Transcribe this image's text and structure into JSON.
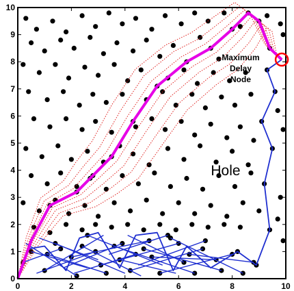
{
  "chart_data": {
    "type": "scatter",
    "title": "",
    "xlabel": "",
    "ylabel": "",
    "xlim": [
      0,
      10
    ],
    "ylim": [
      0,
      10
    ],
    "x_ticks": [
      "0",
      "2",
      "4",
      "6",
      "8",
      "10"
    ],
    "y_ticks": [
      "0",
      "1",
      "2",
      "3",
      "4",
      "5",
      "6",
      "7",
      "8",
      "9",
      "10"
    ],
    "grid": false,
    "colors": {
      "nodes": "#000000",
      "upper_path": "#e600e6",
      "lower_path": "#1f2fd0",
      "dotted_routes": "#e0201e",
      "marker": "#ff0000"
    },
    "annotations": {
      "max_delay_line1": "Maximum",
      "max_delay_line2": "Delay",
      "max_delay_line3": "Node",
      "hole_label": "Hole"
    },
    "max_delay_node": [
      9.85,
      8.08
    ],
    "upper_path": [
      [
        0,
        0
      ],
      [
        0.5,
        1.4
      ],
      [
        1.2,
        2.7
      ],
      [
        2.2,
        3.2
      ],
      [
        2.8,
        3.8
      ],
      [
        3.5,
        4.5
      ],
      [
        4.3,
        5.8
      ],
      [
        5.2,
        7.1
      ],
      [
        6.3,
        8.0
      ],
      [
        7.2,
        8.5
      ],
      [
        8.0,
        9.2
      ],
      [
        8.6,
        9.8
      ],
      [
        9.0,
        9.5
      ],
      [
        9.4,
        8.5
      ],
      [
        9.85,
        8.08
      ]
    ],
    "lower_path": [
      [
        0,
        0
      ],
      [
        0.4,
        1.1
      ],
      [
        1.0,
        1.2
      ],
      [
        1.8,
        0.3
      ],
      [
        2.3,
        1.5
      ],
      [
        3.0,
        1.7
      ],
      [
        3.8,
        0.4
      ],
      [
        4.4,
        1.6
      ],
      [
        5.2,
        1.7
      ],
      [
        5.8,
        0.3
      ],
      [
        6.3,
        1.2
      ],
      [
        7.2,
        0.4
      ],
      [
        8.2,
        1.0
      ],
      [
        8.9,
        0.5
      ],
      [
        9.4,
        1.8
      ],
      [
        9.2,
        3.5
      ],
      [
        9.5,
        4.8
      ],
      [
        9.1,
        5.8
      ],
      [
        9.6,
        6.9
      ],
      [
        9.3,
        7.7
      ],
      [
        9.85,
        8.08
      ]
    ],
    "lower_mesh_links": [
      [
        [
          0.2,
          0.6
        ],
        [
          1.6,
          1.1
        ]
      ],
      [
        [
          0.5,
          1.0
        ],
        [
          2.6,
          0.4
        ]
      ],
      [
        [
          1.0,
          0.3
        ],
        [
          3.2,
          1.6
        ]
      ],
      [
        [
          1.4,
          1.3
        ],
        [
          4.0,
          0.2
        ]
      ],
      [
        [
          2.0,
          0.8
        ],
        [
          4.9,
          1.4
        ]
      ],
      [
        [
          2.6,
          1.6
        ],
        [
          5.4,
          0.5
        ]
      ],
      [
        [
          3.1,
          0.5
        ],
        [
          6.0,
          1.3
        ]
      ],
      [
        [
          3.6,
          1.2
        ],
        [
          6.6,
          0.2
        ]
      ],
      [
        [
          4.2,
          0.3
        ],
        [
          6.9,
          1.1
        ]
      ],
      [
        [
          4.7,
          1.1
        ],
        [
          7.6,
          0.3
        ]
      ],
      [
        [
          5.3,
          0.2
        ],
        [
          8.0,
          0.9
        ]
      ],
      [
        [
          0.3,
          1.3
        ],
        [
          2.2,
          0.1
        ]
      ],
      [
        [
          0.7,
          0.2
        ],
        [
          2.9,
          1.0
        ]
      ],
      [
        [
          1.7,
          0.4
        ],
        [
          3.9,
          1.3
        ]
      ],
      [
        [
          2.4,
          1.2
        ],
        [
          4.6,
          0.1
        ]
      ],
      [
        [
          3.4,
          0.9
        ],
        [
          5.6,
          1.6
        ]
      ],
      [
        [
          4.1,
          1.6
        ],
        [
          6.2,
          0.6
        ]
      ],
      [
        [
          5.0,
          0.8
        ],
        [
          7.4,
          0.7
        ]
      ],
      [
        [
          5.7,
          1.5
        ],
        [
          8.4,
          0.2
        ]
      ],
      [
        [
          6.4,
          0.9
        ],
        [
          8.8,
          0.6
        ]
      ],
      [
        [
          1.1,
          0.9
        ],
        [
          3.3,
          0.2
        ]
      ],
      [
        [
          2.1,
          0.2
        ],
        [
          4.4,
          0.9
        ]
      ],
      [
        [
          0.8,
          1.5
        ],
        [
          3.0,
          0.7
        ]
      ],
      [
        [
          3.8,
          0.7
        ],
        [
          5.9,
          0.2
        ]
      ],
      [
        [
          4.5,
          0.5
        ],
        [
          7.0,
          1.4
        ]
      ]
    ],
    "nodes": [
      [
        0.3,
        9.6
      ],
      [
        0.7,
        9.2
      ],
      [
        1.3,
        9.5
      ],
      [
        1.8,
        9.1
      ],
      [
        2.4,
        9.7
      ],
      [
        2.9,
        9.3
      ],
      [
        3.4,
        9.8
      ],
      [
        3.9,
        9.4
      ],
      [
        4.4,
        9.6
      ],
      [
        5.0,
        9.2
      ],
      [
        5.5,
        9.7
      ],
      [
        6.1,
        9.4
      ],
      [
        6.6,
        9.8
      ],
      [
        7.1,
        9.5
      ],
      [
        7.7,
        9.8
      ],
      [
        8.3,
        9.3
      ],
      [
        9.3,
        9.7
      ],
      [
        9.8,
        9.4
      ],
      [
        0.5,
        8.7
      ],
      [
        1.0,
        8.4
      ],
      [
        1.6,
        8.8
      ],
      [
        2.1,
        8.5
      ],
      [
        2.7,
        8.9
      ],
      [
        3.2,
        8.3
      ],
      [
        3.7,
        8.7
      ],
      [
        4.3,
        8.4
      ],
      [
        4.8,
        8.8
      ],
      [
        5.3,
        8.2
      ],
      [
        5.8,
        8.6
      ],
      [
        6.8,
        8.9
      ],
      [
        7.5,
        8.1
      ],
      [
        0.2,
        7.9
      ],
      [
        0.8,
        7.6
      ],
      [
        1.4,
        7.9
      ],
      [
        1.9,
        7.4
      ],
      [
        2.5,
        7.8
      ],
      [
        3.0,
        7.5
      ],
      [
        3.6,
        7.9
      ],
      [
        4.1,
        7.3
      ],
      [
        4.6,
        7.7
      ],
      [
        5.6,
        7.4
      ],
      [
        6.2,
        7.7
      ],
      [
        6.7,
        7.2
      ],
      [
        7.3,
        7.6
      ],
      [
        7.9,
        7.3
      ],
      [
        8.5,
        7.6
      ],
      [
        0.4,
        6.9
      ],
      [
        1.1,
        6.6
      ],
      [
        1.7,
        6.9
      ],
      [
        2.3,
        6.4
      ],
      [
        2.8,
        6.8
      ],
      [
        3.3,
        6.5
      ],
      [
        3.9,
        6.8
      ],
      [
        4.8,
        6.6
      ],
      [
        5.4,
        6.9
      ],
      [
        5.9,
        6.4
      ],
      [
        6.5,
        6.8
      ],
      [
        7.0,
        6.3
      ],
      [
        7.6,
        6.7
      ],
      [
        8.1,
        6.4
      ],
      [
        8.7,
        6.8
      ],
      [
        0.6,
        5.9
      ],
      [
        1.2,
        5.6
      ],
      [
        1.8,
        5.9
      ],
      [
        2.4,
        5.5
      ],
      [
        2.9,
        5.8
      ],
      [
        3.5,
        5.4
      ],
      [
        4.4,
        5.6
      ],
      [
        5.0,
        5.9
      ],
      [
        5.5,
        5.5
      ],
      [
        6.1,
        5.8
      ],
      [
        6.6,
        5.3
      ],
      [
        7.2,
        5.7
      ],
      [
        7.8,
        5.2
      ],
      [
        8.3,
        5.6
      ],
      [
        8.8,
        5.1
      ],
      [
        0.3,
        4.8
      ],
      [
        0.9,
        4.5
      ],
      [
        1.5,
        4.9
      ],
      [
        2.0,
        4.4
      ],
      [
        2.6,
        4.7
      ],
      [
        3.2,
        4.3
      ],
      [
        3.8,
        4.9
      ],
      [
        4.3,
        4.6
      ],
      [
        4.9,
        4.2
      ],
      [
        5.6,
        4.8
      ],
      [
        6.2,
        4.4
      ],
      [
        6.8,
        4.9
      ],
      [
        7.4,
        4.3
      ],
      [
        8.0,
        4.7
      ],
      [
        8.6,
        4.2
      ],
      [
        0.5,
        3.8
      ],
      [
        1.1,
        3.5
      ],
      [
        1.6,
        3.9
      ],
      [
        2.2,
        3.4
      ],
      [
        2.7,
        3.7
      ],
      [
        3.3,
        3.3
      ],
      [
        3.9,
        3.8
      ],
      [
        4.5,
        3.5
      ],
      [
        5.1,
        3.9
      ],
      [
        5.7,
        3.4
      ],
      [
        6.3,
        3.7
      ],
      [
        6.9,
        3.3
      ],
      [
        7.5,
        3.8
      ],
      [
        8.1,
        3.4
      ],
      [
        8.7,
        3.9
      ],
      [
        0.2,
        2.8
      ],
      [
        0.8,
        2.5
      ],
      [
        1.4,
        2.9
      ],
      [
        1.9,
        2.4
      ],
      [
        2.5,
        2.7
      ],
      [
        3.0,
        2.3
      ],
      [
        3.6,
        2.8
      ],
      [
        4.2,
        2.5
      ],
      [
        4.8,
        2.9
      ],
      [
        5.4,
        2.4
      ],
      [
        6.0,
        2.8
      ],
      [
        6.6,
        2.4
      ],
      [
        7.2,
        2.7
      ],
      [
        7.8,
        2.3
      ],
      [
        8.4,
        2.8
      ],
      [
        9.0,
        2.5
      ],
      [
        0.6,
        1.9
      ],
      [
        1.2,
        1.7
      ],
      [
        1.8,
        2.0
      ],
      [
        2.4,
        1.8
      ],
      [
        2.9,
        2.0
      ],
      [
        3.5,
        1.9
      ],
      [
        4.1,
        2.0
      ],
      [
        4.7,
        1.8
      ],
      [
        5.3,
        2.0
      ],
      [
        5.9,
        1.8
      ],
      [
        6.5,
        2.0
      ],
      [
        7.1,
        1.9
      ],
      [
        7.7,
        2.0
      ],
      [
        8.3,
        1.9
      ],
      [
        9.9,
        9.0
      ],
      [
        9.7,
        6.2
      ],
      [
        9.9,
        5.5
      ],
      [
        9.8,
        3.0
      ],
      [
        9.7,
        2.2
      ],
      [
        9.9,
        1.4
      ],
      [
        0.2,
        0.6
      ],
      [
        0.5,
        1.0
      ],
      [
        1.0,
        0.3
      ],
      [
        1.4,
        1.3
      ],
      [
        2.0,
        0.8
      ],
      [
        2.6,
        1.6
      ],
      [
        3.1,
        0.5
      ],
      [
        3.6,
        1.2
      ],
      [
        4.2,
        0.3
      ],
      [
        4.7,
        1.1
      ],
      [
        5.3,
        0.2
      ],
      [
        5.7,
        1.5
      ],
      [
        6.4,
        0.9
      ],
      [
        7.0,
        1.4
      ],
      [
        7.6,
        0.3
      ],
      [
        8.0,
        0.9
      ],
      [
        8.4,
        0.2
      ],
      [
        8.8,
        0.6
      ],
      [
        1.6,
        1.1
      ],
      [
        2.2,
        0.1
      ],
      [
        2.9,
        1.0
      ],
      [
        3.3,
        0.2
      ],
      [
        3.9,
        1.3
      ],
      [
        4.4,
        0.9
      ],
      [
        4.9,
        1.4
      ],
      [
        5.6,
        1.6
      ],
      [
        6.0,
        1.3
      ],
      [
        6.6,
        0.2
      ],
      [
        7.4,
        0.7
      ],
      [
        1.1,
        0.9
      ],
      [
        2.4,
        1.2
      ],
      [
        3.8,
        0.7
      ],
      [
        5.0,
        0.8
      ],
      [
        6.2,
        0.6
      ],
      [
        6.9,
        1.1
      ],
      [
        8.2,
        1.0
      ],
      [
        8.9,
        0.5
      ],
      [
        9.4,
        1.8
      ],
      [
        9.2,
        3.5
      ],
      [
        9.5,
        4.8
      ],
      [
        9.1,
        5.8
      ],
      [
        9.6,
        6.9
      ],
      [
        9.3,
        7.7
      ],
      [
        1.2,
        2.7
      ],
      [
        2.2,
        3.2
      ],
      [
        2.8,
        3.8
      ],
      [
        3.5,
        4.5
      ],
      [
        4.3,
        5.8
      ],
      [
        5.2,
        7.1
      ],
      [
        6.3,
        8.0
      ],
      [
        7.2,
        8.5
      ],
      [
        8.0,
        9.2
      ],
      [
        8.6,
        9.8
      ],
      [
        9.0,
        9.5
      ],
      [
        9.4,
        8.5
      ]
    ]
  }
}
